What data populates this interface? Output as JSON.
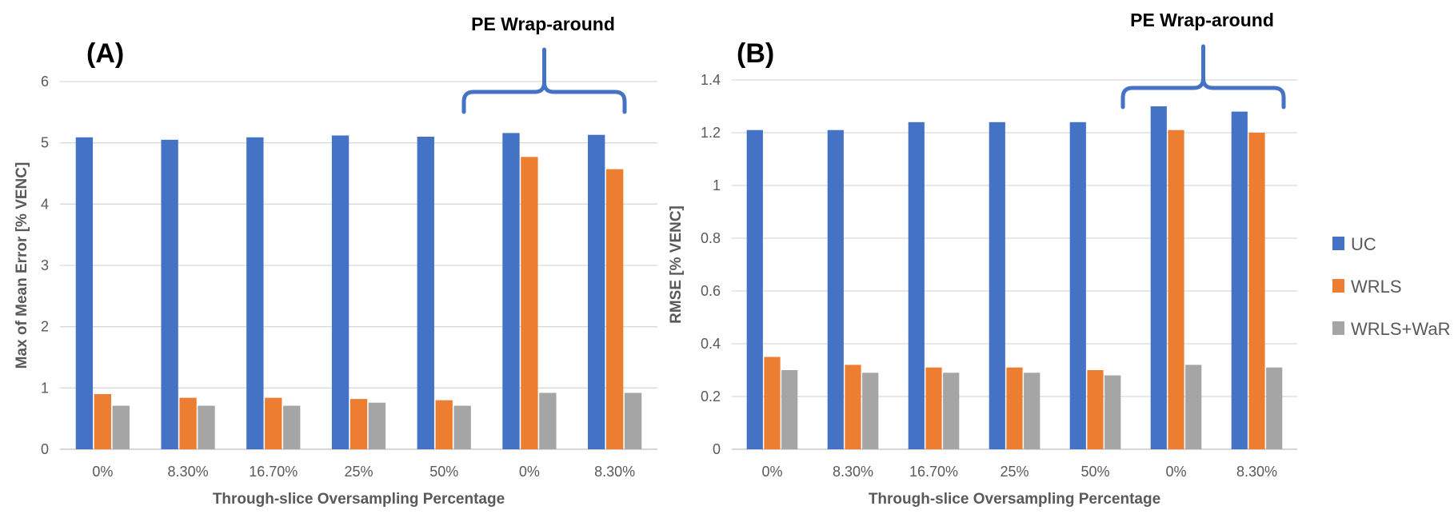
{
  "colors": {
    "UC": "#4472C4",
    "WRLS": "#ED7D31",
    "WRLS+WaR": "#A5A5A5",
    "grid": "#D9D9D9",
    "bracket": "#4472C4"
  },
  "legend": [
    {
      "name": "UC",
      "color": "#4472C4"
    },
    {
      "name": "WRLS",
      "color": "#ED7D31"
    },
    {
      "name": "WRLS+WaR",
      "color": "#A5A5A5"
    }
  ],
  "chart_data": [
    {
      "type": "bar",
      "panel_label": "(A)",
      "annotation": "PE Wrap-around",
      "categories": [
        "0%",
        "8.30%",
        "16.70%",
        "25%",
        "50%",
        "0%",
        "8.30%"
      ],
      "series": [
        {
          "name": "UC",
          "values": [
            5.09,
            5.05,
            5.09,
            5.12,
            5.1,
            5.16,
            5.13
          ]
        },
        {
          "name": "WRLS",
          "values": [
            0.9,
            0.84,
            0.84,
            0.82,
            0.8,
            4.77,
            4.57
          ]
        },
        {
          "name": "WRLS+WaR",
          "values": [
            0.71,
            0.71,
            0.71,
            0.76,
            0.71,
            0.92,
            0.92
          ]
        }
      ],
      "xlabel": "Through-slice Oversampling Percentage",
      "ylabel": "Max of Mean Error [% VENC]",
      "ylim": [
        0,
        6
      ],
      "yticks": [
        "0",
        "1",
        "2",
        "3",
        "4",
        "5",
        "6"
      ],
      "grid": true
    },
    {
      "type": "bar",
      "panel_label": "(B)",
      "annotation": "PE Wrap-around",
      "categories": [
        "0%",
        "8.30%",
        "16.70%",
        "25%",
        "50%",
        "0%",
        "8.30%"
      ],
      "series": [
        {
          "name": "UC",
          "values": [
            1.21,
            1.21,
            1.24,
            1.24,
            1.24,
            1.3,
            1.28
          ]
        },
        {
          "name": "WRLS",
          "values": [
            0.35,
            0.32,
            0.31,
            0.31,
            0.3,
            1.21,
            1.2
          ]
        },
        {
          "name": "WRLS+WaR",
          "values": [
            0.3,
            0.29,
            0.29,
            0.29,
            0.28,
            0.32,
            0.31
          ]
        }
      ],
      "xlabel": "Through-slice Oversampling Percentage",
      "ylabel": "RMSE [% VENC]",
      "ylim": [
        0,
        1.4
      ],
      "yticks": [
        "0",
        "0.2",
        "0.4",
        "0.6",
        "0.8",
        "1",
        "1.2",
        "1.4"
      ],
      "grid": true
    }
  ]
}
